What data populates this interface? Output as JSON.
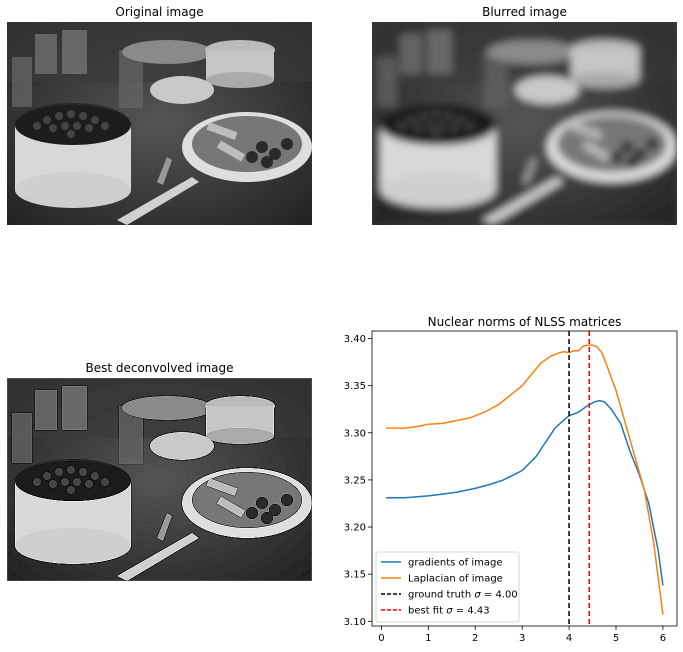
{
  "panels": {
    "original": {
      "title": "Original image"
    },
    "blurred": {
      "title": "Blurred image"
    },
    "deconvolved": {
      "title": "Best deconvolved image"
    }
  },
  "chart_data": {
    "type": "line",
    "title": "Nuclear norms of NLSS matrices",
    "xlabel": "",
    "ylabel": "",
    "xlim": [
      -0.2,
      6.3
    ],
    "ylim": [
      3.095,
      3.408
    ],
    "xticks": [
      0,
      1,
      2,
      3,
      4,
      5,
      6
    ],
    "yticks": [
      3.1,
      3.15,
      3.2,
      3.25,
      3.3,
      3.35,
      3.4
    ],
    "ytick_labels": [
      "3.10",
      "3.15",
      "3.20",
      "3.25",
      "3.30",
      "3.35",
      "3.40"
    ],
    "grid": false,
    "legend": "lower-left",
    "series": [
      {
        "name": "gradients of image",
        "color": "#1f77b4",
        "x": [
          0.1,
          0.5,
          1.0,
          1.3,
          1.6,
          2.0,
          2.3,
          2.6,
          3.0,
          3.3,
          3.5,
          3.7,
          3.9,
          4.0,
          4.2,
          4.4,
          4.55,
          4.65,
          4.75,
          4.9,
          5.1,
          5.3,
          5.5,
          5.7,
          5.9,
          6.0
        ],
        "y": [
          3.231,
          3.231,
          3.233,
          3.235,
          3.237,
          3.241,
          3.245,
          3.25,
          3.26,
          3.275,
          3.29,
          3.305,
          3.314,
          3.318,
          3.322,
          3.329,
          3.333,
          3.334,
          3.333,
          3.325,
          3.31,
          3.28,
          3.255,
          3.225,
          3.175,
          3.138
        ]
      },
      {
        "name": "Laplacian of image",
        "color": "#ff7f0e",
        "x": [
          0.1,
          0.5,
          0.8,
          1.0,
          1.3,
          1.6,
          1.9,
          2.2,
          2.5,
          2.8,
          3.0,
          3.2,
          3.4,
          3.6,
          3.8,
          3.9,
          4.0,
          4.1,
          4.2,
          4.3,
          4.4,
          4.5,
          4.6,
          4.7,
          4.8,
          5.0,
          5.2,
          5.4,
          5.6,
          5.8,
          6.0
        ],
        "y": [
          3.305,
          3.305,
          3.307,
          3.309,
          3.31,
          3.313,
          3.316,
          3.322,
          3.33,
          3.342,
          3.35,
          3.362,
          3.374,
          3.381,
          3.385,
          3.386,
          3.385,
          3.387,
          3.387,
          3.392,
          3.393,
          3.393,
          3.391,
          3.385,
          3.372,
          3.345,
          3.31,
          3.275,
          3.24,
          3.185,
          3.107
        ]
      }
    ],
    "vlines": [
      {
        "name": "ground truth $\\sigma = 4.00$",
        "label_prefix": "ground truth ",
        "label_sigma": "σ",
        "label_value": " = 4.00",
        "x": 4.0,
        "color": "#000000",
        "style": "dashed"
      },
      {
        "name": "best fit $\\sigma = 4.43$",
        "label_prefix": "best fit ",
        "label_sigma": "σ",
        "label_value": " = 4.43",
        "x": 4.43,
        "color": "#ff0000",
        "style": "dashed"
      }
    ]
  }
}
